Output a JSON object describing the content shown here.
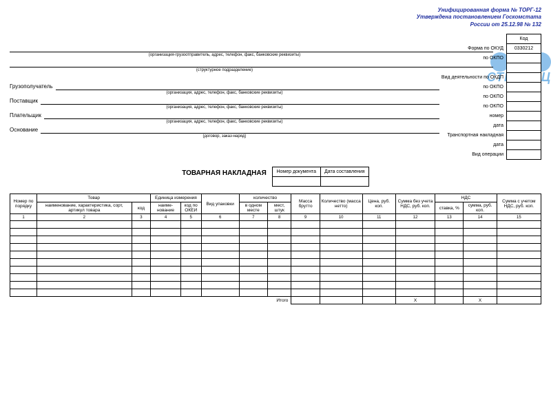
{
  "header": {
    "line1": "Унифицированная форма № ТОРГ-12",
    "line2": "Утверждена постановлением Госкомстата",
    "line3": "России от 25.12.98 № 132"
  },
  "watermark": {
    "text": "СТРАНИЦ"
  },
  "codes": {
    "hdr": "Код",
    "rows": [
      {
        "label": "Форма по ОКУД",
        "value": "0330212"
      },
      {
        "label": "по ОКПО",
        "value": ""
      }
    ],
    "okdp_label": "Вид деятельности по ОКДП",
    "po_okpo": "по ОКПО",
    "nomer": "номер",
    "data": "дата",
    "transp": "Транспортная накладная",
    "vid_op": "Вид операции"
  },
  "sender_caption": "(организация-грузоотправитель, адрес, телефон, факс, банковские реквизиты)",
  "struct_caption": "(структурное подразделение)",
  "fields": {
    "gruz": {
      "label": "Грузополучатель",
      "caption": "(организация, адрес, телефон, факс, банковские реквизиты)"
    },
    "post": {
      "label": "Поставщик",
      "caption": "(организация, адрес, телефон, факс, банковские реквизиты)"
    },
    "plat": {
      "label": "Плательщик",
      "caption": "(организация, адрес, телефон, факс, банковские реквизиты)"
    },
    "osn": {
      "label": "Основание",
      "caption": "(договор, заказ-наряд)"
    }
  },
  "doc": {
    "title": "ТОВАРНАЯ НАКЛАДНАЯ",
    "num_hdr": "Номер документа",
    "date_hdr": "Дата составления"
  },
  "table": {
    "headers": {
      "c1": "Номер по порядку",
      "tovar": "Товар",
      "c2": "наименование, характеристика, сорт, артикул товара",
      "c3": "код",
      "ed": "Единица измерения",
      "c4": "наиме-\nнование",
      "c5": "код по ОКЕИ",
      "c6": "Вид упаковки",
      "kol": "количество",
      "c7": "в одном месте",
      "c8": "мест, штук",
      "c9": "Масса брутто",
      "c10": "Количество (масса нетто)",
      "c11": "Цена, руб. коп.",
      "c12": "Сумма без учета НДС, руб. коп.",
      "nds": "НДС",
      "c13": "ставка, %",
      "c14": "сумма, руб. коп.",
      "c15": "Сумма с учетом НДС, руб. коп."
    },
    "nums": [
      "1",
      "2",
      "3",
      "4",
      "5",
      "6",
      "7",
      "8",
      "9",
      "10",
      "11",
      "12",
      "13",
      "14",
      "15"
    ],
    "empty_rows": 10,
    "itogo": "Итого",
    "x": "Х"
  },
  "colors": {
    "header_text": "#2030a0",
    "watermark": "#6aaee5",
    "border": "#000000",
    "bg": "#ffffff"
  }
}
